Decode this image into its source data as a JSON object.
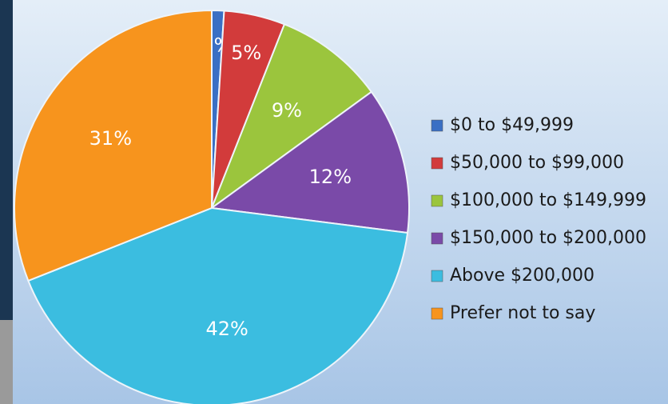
{
  "chart_data": {
    "type": "pie",
    "categories": [
      "$0 to $49,999",
      "$50,000 to $99,000",
      "$100,000 to $149,999",
      "$150,000 to $200,000",
      "Above $200,000",
      "Prefer not to say"
    ],
    "values": [
      1,
      5,
      9,
      12,
      42,
      31
    ],
    "value_labels": [
      "1%",
      "5%",
      "9%",
      "12%",
      "42%",
      "31%"
    ],
    "colors": [
      "#3a6fc4",
      "#d23b3b",
      "#9bc53d",
      "#7a4aa8",
      "#3bbde0",
      "#f7941d"
    ],
    "legend": "right"
  }
}
